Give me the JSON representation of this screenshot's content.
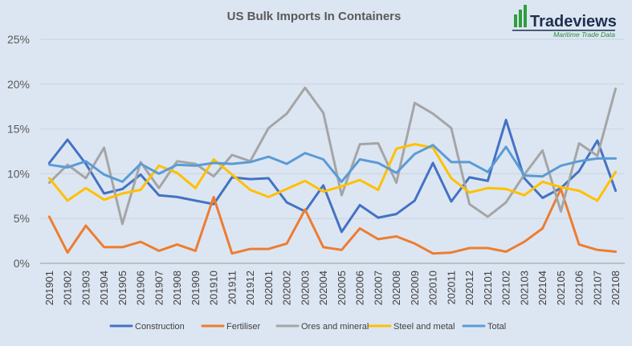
{
  "logo": {
    "name": "Tradeviews",
    "tagline": "Maritime Trade Data",
    "bar_color": "#2e9e3f",
    "text_color": "#1f2f4f"
  },
  "chart_data": {
    "type": "line",
    "title": "US Bulk Imports In Containers",
    "xlabel": "",
    "ylabel": "",
    "ylim": [
      0,
      25
    ],
    "yticks": [
      "0%",
      "5%",
      "10%",
      "15%",
      "20%",
      "25%"
    ],
    "grid": true,
    "legend_position": "bottom",
    "categories": [
      "201901",
      "201902",
      "201903",
      "201904",
      "201905",
      "201906",
      "201907",
      "201908",
      "201909",
      "201910",
      "201911",
      "201912",
      "202001",
      "202002",
      "202003",
      "202004",
      "202005",
      "202006",
      "202007",
      "202008",
      "202009",
      "202010",
      "202011",
      "202012",
      "202101",
      "202102",
      "202103",
      "202104",
      "202105",
      "202106",
      "202107",
      "202108"
    ],
    "series": [
      {
        "name": "Construction",
        "color": "#4472c4",
        "values": [
          11.2,
          13.8,
          11.1,
          7.8,
          8.3,
          9.9,
          7.6,
          7.4,
          7.0,
          6.6,
          9.6,
          9.4,
          9.5,
          6.8,
          5.8,
          8.7,
          3.5,
          6.5,
          5.1,
          5.5,
          7.0,
          11.2,
          6.9,
          9.6,
          9.2,
          16.0,
          9.5,
          7.3,
          8.4,
          10.3,
          13.7,
          8.1
        ]
      },
      {
        "name": "Fertiliser",
        "color": "#ed7d31",
        "values": [
          5.2,
          1.2,
          4.2,
          1.8,
          1.8,
          2.4,
          1.4,
          2.1,
          1.4,
          7.4,
          1.1,
          1.6,
          1.6,
          2.2,
          6.0,
          1.8,
          1.5,
          3.9,
          2.7,
          3.0,
          2.2,
          1.1,
          1.2,
          1.7,
          1.7,
          1.3,
          2.4,
          3.9,
          8.3,
          2.1,
          1.5,
          1.3
        ]
      },
      {
        "name": "Ores and mineral",
        "color": "#a5a5a5",
        "values": [
          9.0,
          11.0,
          9.5,
          12.9,
          4.4,
          11.3,
          8.4,
          11.4,
          11.1,
          9.7,
          12.1,
          11.4,
          15.1,
          16.7,
          19.6,
          16.8,
          7.6,
          13.3,
          13.4,
          9.0,
          17.9,
          16.7,
          15.1,
          6.6,
          5.2,
          6.8,
          9.9,
          12.6,
          5.8,
          13.4,
          12.0,
          19.5
        ]
      },
      {
        "name": "Steel and metal",
        "color": "#ffc000",
        "values": [
          9.5,
          7.0,
          8.4,
          7.1,
          7.8,
          8.2,
          10.9,
          10.1,
          8.4,
          11.6,
          9.9,
          8.2,
          7.4,
          8.3,
          9.2,
          8.0,
          8.6,
          9.3,
          8.2,
          12.8,
          13.3,
          12.9,
          9.5,
          7.9,
          8.4,
          8.3,
          7.6,
          9.1,
          8.5,
          8.1,
          7.0,
          10.2
        ]
      },
      {
        "name": "Total",
        "color": "#5b9bd5",
        "values": [
          11.0,
          10.7,
          11.4,
          9.9,
          9.1,
          11.1,
          10.0,
          11.0,
          10.9,
          11.2,
          11.1,
          11.3,
          11.9,
          11.1,
          12.3,
          11.6,
          9.1,
          11.6,
          11.2,
          10.1,
          12.2,
          13.2,
          11.3,
          11.3,
          10.2,
          13.0,
          9.8,
          9.7,
          10.9,
          11.4,
          11.7,
          11.7
        ]
      }
    ]
  }
}
